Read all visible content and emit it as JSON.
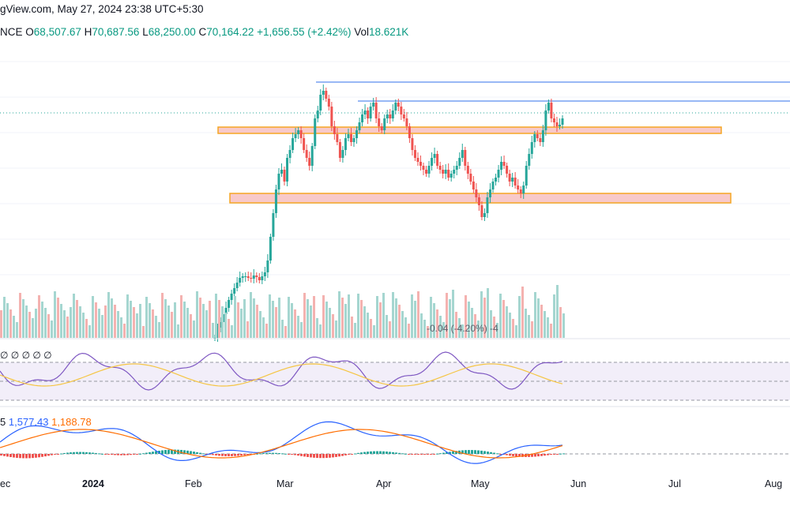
{
  "header": {
    "title_line": "gView.com, May 27, 2024 23:38 UTC+5:30",
    "exchange": "NCE",
    "open_label": "O",
    "open_value": "68,507.67",
    "high_label": "H",
    "high_value": "70,687.56",
    "low_label": "L",
    "low_value": "68,250.00",
    "close_label": "C",
    "close_value": "70,164.22",
    "change": "+1,656.55 (+2.42%)",
    "vol_label": "Vol",
    "vol_value": "18.621K"
  },
  "volume_overlay_label": "-0.04 (-4.20%) -4",
  "rsi_legend": "∅ ∅ ∅ ∅ ∅",
  "macd_legend": {
    "prefix": "5",
    "macd_value": "1,577.43",
    "signal_value": "1,188.78"
  },
  "x_axis_labels": [
    {
      "text": "ec",
      "bold": false
    },
    {
      "text": "2024",
      "bold": true
    },
    {
      "text": "Feb",
      "bold": false
    },
    {
      "text": "Mar",
      "bold": false
    },
    {
      "text": "Apr",
      "bold": false
    },
    {
      "text": "May",
      "bold": false
    },
    {
      "text": "Jun",
      "bold": false
    },
    {
      "text": "Jul",
      "bold": false
    },
    {
      "text": "Aug",
      "bold": false
    }
  ],
  "colors": {
    "up": "#26a69a",
    "down": "#ef5350",
    "resistance_line": "#5b8def",
    "zone_fill": "#f8c9c9",
    "zone_border": "#f5a623",
    "rsi_line": "#7e57c2",
    "rsi_ma": "#f5c542",
    "macd_line": "#2962ff",
    "signal_line": "#ff6d00"
  },
  "chart_data": {
    "type": "candlestick",
    "symbol_exchange_fragment": "NCE",
    "candles": [
      [
        0,
        0,
        0,
        0
      ],
      [
        0,
        0,
        0,
        0
      ]
    ],
    "last_bar": {
      "open": 68507.67,
      "high": 70687.56,
      "low": 68250.0,
      "close": 70164.22,
      "change": 1656.55,
      "change_pct": 2.42,
      "volume": "18.621K"
    },
    "indicators": [
      "Volume",
      "RSI",
      "MACD"
    ],
    "macd_values": {
      "macd": 1577.43,
      "signal": 1188.78
    }
  }
}
